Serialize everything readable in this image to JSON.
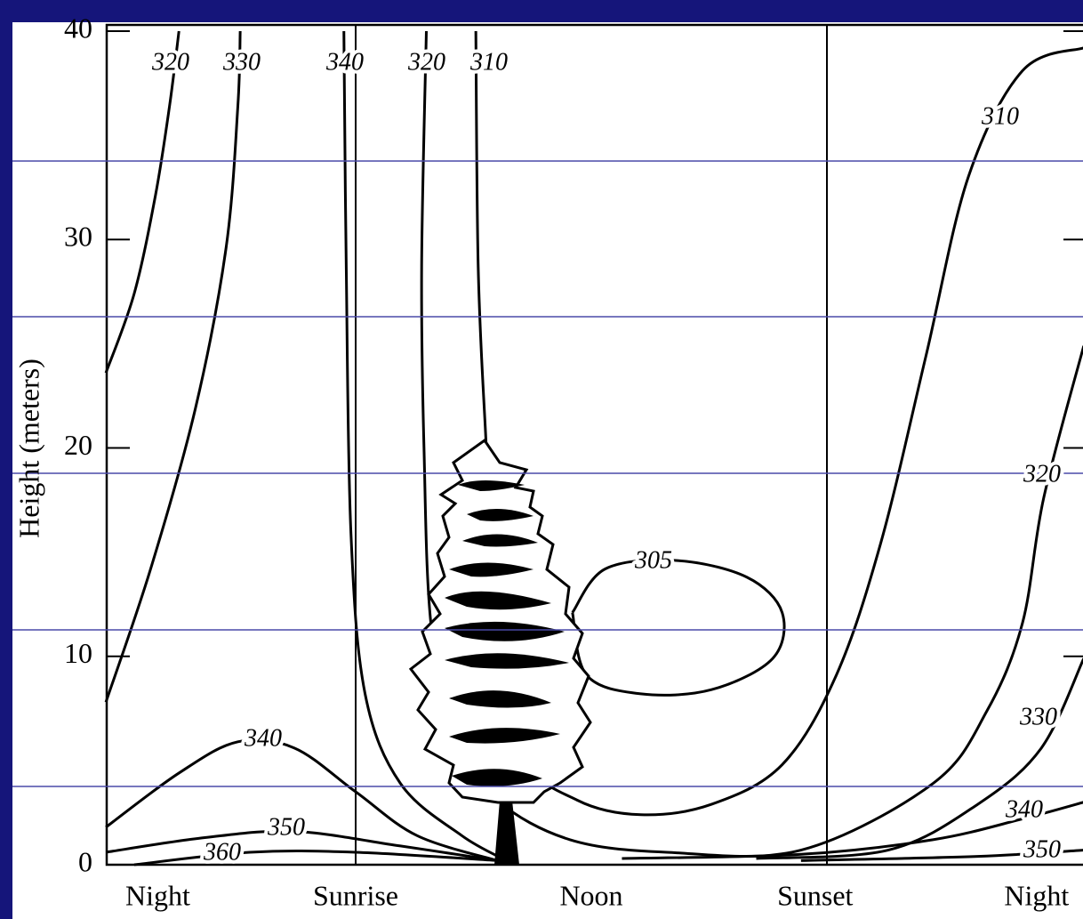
{
  "chart_data": {
    "type": "contour",
    "ylabel": "Height (meters)",
    "categories": [
      "Night",
      "Sunrise",
      "Noon",
      "Sunset",
      "Night"
    ],
    "vlines": [
      1,
      3
    ],
    "ylim": [
      0,
      40
    ],
    "yticks": [
      0,
      10,
      20,
      30,
      40
    ],
    "color": "#000000",
    "contours": [
      {
        "level": 320,
        "x": [
          -0.06,
          0.06,
          0.15,
          0.21,
          0.25
        ],
        "y": [
          23.6,
          27.4,
          32.1,
          36.4,
          40
        ]
      },
      {
        "level": 330,
        "x": [
          -0.06,
          0.13,
          0.32,
          0.45,
          0.5,
          0.51
        ],
        "y": [
          7.8,
          14.2,
          21.9,
          29.6,
          36.4,
          40
        ]
      },
      {
        "level": 340,
        "x": [
          0.95,
          0.96,
          0.98,
          1.04,
          1.19,
          1.45,
          1.64
        ],
        "y": [
          40,
          28.7,
          15.9,
          8.2,
          3.9,
          1.4,
          0.2
        ]
      },
      {
        "level": 320,
        "x": [
          1.3,
          1.28,
          1.29,
          1.32,
          1.42,
          1.6,
          1.91,
          2.32,
          2.89,
          3.45,
          3.68,
          3.83,
          3.92,
          4.09
        ],
        "y": [
          40,
          28.7,
          20,
          11.5,
          6,
          3.1,
          1.2,
          0.6,
          0.7,
          3.9,
          7.4,
          11.6,
          17.6,
          24.9
        ]
      },
      {
        "level": 310,
        "x": [
          1.51,
          1.52,
          1.55,
          1.6,
          1.72,
          1.94,
          2.21,
          2.51,
          2.81,
          3.04,
          3.23,
          3.42,
          3.6,
          3.83,
          4.09
        ],
        "y": [
          40,
          28.7,
          21,
          11.6,
          5.2,
          3.1,
          2.4,
          2.9,
          4.8,
          9.1,
          15.5,
          24.4,
          33,
          38.1,
          39.2
        ]
      },
      {
        "level": 305,
        "x": [
          1.92,
          2.06,
          2.36,
          2.66,
          2.81,
          2.77,
          2.51,
          2.21,
          1.98,
          1.92
        ],
        "y": [
          12.1,
          14.2,
          14.6,
          13.8,
          12.1,
          9.9,
          8.4,
          8.2,
          9.1,
          12.1
        ]
      },
      {
        "level": 340,
        "x": [
          -0.06,
          0.25,
          0.5,
          0.74,
          1.0,
          1.26,
          1.6
        ],
        "y": [
          1.8,
          4.4,
          5.9,
          5.6,
          3.5,
          1.4,
          0.2
        ]
      },
      {
        "level": 350,
        "x": [
          -0.06,
          0.36,
          0.74,
          1.19,
          1.6
        ],
        "y": [
          0.6,
          1.3,
          1.6,
          0.9,
          0.2
        ]
      },
      {
        "level": 360,
        "x": [
          0.06,
          0.55,
          1.0,
          1.6
        ],
        "y": [
          0,
          0.6,
          0.6,
          0.2
        ]
      },
      {
        "level": 340,
        "x": [
          2.13,
          2.89,
          3.45,
          3.83,
          4.09
        ],
        "y": [
          0.3,
          0.5,
          1.2,
          2.2,
          3.0
        ]
      },
      {
        "level": 350,
        "x": [
          2.89,
          3.64,
          4.09
        ],
        "y": [
          0.2,
          0.4,
          0.7
        ]
      },
      {
        "level": 330,
        "x": [
          2.7,
          3.26,
          3.64,
          3.91,
          4.09
        ],
        "y": [
          0.3,
          0.7,
          2.9,
          5.6,
          9.9
        ]
      }
    ]
  }
}
